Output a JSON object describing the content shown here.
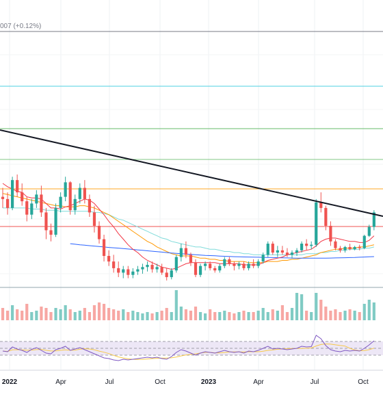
{
  "header": {
    "legend_fragment": "007 (+0.12%)"
  },
  "chart_data": {
    "type": "candlestick",
    "colors": {
      "up": "#26a69a",
      "down": "#ef5350",
      "volume_up": "#80cbc4",
      "volume_down": "#f7a7a3",
      "trendline": "#131722",
      "sma_fast": "#f23645",
      "sma_mid": "#ff9800",
      "sma_slow": "#7fdbda",
      "sma_long": "#2962ff",
      "rsi": "#7e57c2",
      "rsi_ma": "#f7c948",
      "rsi_band": "#ede7f6"
    },
    "price_levels": [
      {
        "name": "level-1",
        "color": "#787b86"
      },
      {
        "name": "level-2",
        "color": "#4dd0e1"
      },
      {
        "name": "level-3",
        "color": "#66bb6a"
      },
      {
        "name": "level-4",
        "color": "#81c784"
      },
      {
        "name": "level-5",
        "color": "#ffa726"
      },
      {
        "name": "level-6",
        "color": "#ef5350"
      },
      {
        "name": "level-7",
        "color": "#90a4ae"
      }
    ],
    "x_ticks": [
      {
        "label": "2022",
        "bold": true
      },
      {
        "label": "Apr",
        "bold": false
      },
      {
        "label": "Jul",
        "bold": false
      },
      {
        "label": "Oct",
        "bold": false
      },
      {
        "label": "2023",
        "bold": true
      },
      {
        "label": "Apr",
        "bold": false
      },
      {
        "label": "Jul",
        "bold": false
      },
      {
        "label": "Oct",
        "bold": false
      }
    ],
    "rsi_levels": [
      70,
      50,
      30
    ],
    "candles": [
      [
        80,
        88,
        70,
        78
      ],
      [
        78,
        84,
        64,
        70
      ],
      [
        70,
        98,
        68,
        95
      ],
      [
        95,
        100,
        80,
        84
      ],
      [
        84,
        92,
        72,
        76
      ],
      [
        76,
        80,
        58,
        64
      ],
      [
        64,
        78,
        60,
        74
      ],
      [
        74,
        86,
        70,
        82
      ],
      [
        82,
        90,
        62,
        66
      ],
      [
        66,
        70,
        42,
        50
      ],
      [
        50,
        56,
        40,
        46
      ],
      [
        46,
        74,
        44,
        70
      ],
      [
        70,
        84,
        66,
        80
      ],
      [
        80,
        98,
        76,
        93
      ],
      [
        93,
        94,
        64,
        68
      ],
      [
        68,
        82,
        64,
        78
      ],
      [
        78,
        92,
        74,
        88
      ],
      [
        88,
        95,
        74,
        78
      ],
      [
        78,
        82,
        62,
        66
      ],
      [
        66,
        72,
        48,
        54
      ],
      [
        54,
        58,
        38,
        42
      ],
      [
        42,
        46,
        22,
        27
      ],
      [
        27,
        32,
        18,
        22
      ],
      [
        22,
        28,
        12,
        16
      ],
      [
        16,
        22,
        8,
        12
      ],
      [
        12,
        18,
        7,
        15
      ],
      [
        15,
        18,
        7,
        10
      ],
      [
        10,
        16,
        7,
        13
      ],
      [
        13,
        18,
        10,
        15
      ],
      [
        15,
        20,
        11,
        17
      ],
      [
        17,
        22,
        13,
        19
      ],
      [
        19,
        22,
        12,
        15
      ],
      [
        15,
        20,
        12,
        17
      ],
      [
        17,
        20,
        10,
        12
      ],
      [
        12,
        16,
        5,
        8
      ],
      [
        8,
        16,
        6,
        14
      ],
      [
        14,
        28,
        12,
        26
      ],
      [
        26,
        38,
        22,
        34
      ],
      [
        34,
        40,
        25,
        28
      ],
      [
        28,
        30,
        18,
        21
      ],
      [
        21,
        24,
        8,
        10
      ],
      [
        10,
        20,
        8,
        18
      ],
      [
        18,
        22,
        14,
        20
      ],
      [
        20,
        22,
        14,
        16
      ],
      [
        16,
        18,
        12,
        14
      ],
      [
        14,
        20,
        12,
        18
      ],
      [
        18,
        26,
        16,
        24
      ],
      [
        24,
        26,
        18,
        20
      ],
      [
        20,
        22,
        14,
        18
      ],
      [
        18,
        22,
        15,
        20
      ],
      [
        20,
        22,
        14,
        16
      ],
      [
        16,
        22,
        14,
        20
      ],
      [
        20,
        24,
        16,
        18
      ],
      [
        18,
        24,
        16,
        22
      ],
      [
        22,
        30,
        20,
        28
      ],
      [
        28,
        40,
        26,
        38
      ],
      [
        38,
        40,
        28,
        30
      ],
      [
        30,
        36,
        26,
        32
      ],
      [
        32,
        36,
        28,
        30
      ],
      [
        30,
        34,
        26,
        28
      ],
      [
        28,
        32,
        25,
        30
      ],
      [
        30,
        34,
        27,
        32
      ],
      [
        32,
        40,
        30,
        38
      ],
      [
        38,
        42,
        32,
        36
      ],
      [
        36,
        40,
        33,
        37
      ],
      [
        37,
        78,
        35,
        75
      ],
      [
        75,
        84,
        66,
        70
      ],
      [
        70,
        72,
        50,
        54
      ],
      [
        54,
        58,
        36,
        40
      ],
      [
        40,
        42,
        32,
        34
      ],
      [
        34,
        36,
        30,
        32
      ],
      [
        32,
        36,
        30,
        35
      ],
      [
        35,
        38,
        32,
        33
      ],
      [
        33,
        36,
        32,
        35
      ],
      [
        35,
        37,
        32,
        34
      ],
      [
        34,
        46,
        33,
        45
      ],
      [
        45,
        55,
        44,
        53
      ],
      [
        53,
        68,
        50,
        66
      ]
    ],
    "volumes": [
      18,
      14,
      22,
      16,
      14,
      24,
      12,
      14,
      20,
      18,
      12,
      18,
      16,
      22,
      16,
      12,
      14,
      18,
      12,
      22,
      26,
      24,
      18,
      16,
      14,
      16,
      12,
      14,
      12,
      10,
      12,
      10,
      12,
      14,
      18,
      12,
      44,
      20,
      16,
      14,
      20,
      12,
      10,
      16,
      12,
      12,
      14,
      12,
      10,
      12,
      14,
      12,
      12,
      14,
      18,
      12,
      16,
      14,
      22,
      12,
      18,
      40,
      38,
      14,
      12,
      40,
      30,
      20,
      14,
      16,
      12,
      14,
      16,
      14,
      12,
      24,
      30,
      26
    ],
    "rsi": [
      42,
      40,
      54,
      48,
      44,
      38,
      47,
      52,
      44,
      36,
      34,
      46,
      50,
      56,
      44,
      48,
      52,
      46,
      40,
      34,
      28,
      22,
      20,
      16,
      14,
      18,
      16,
      18,
      20,
      22,
      24,
      22,
      24,
      20,
      18,
      26,
      38,
      46,
      42,
      36,
      30,
      36,
      40,
      38,
      36,
      40,
      44,
      40,
      38,
      40,
      36,
      42,
      40,
      44,
      50,
      56,
      48,
      50,
      48,
      46,
      48,
      50,
      56,
      54,
      55,
      88,
      78,
      58,
      46,
      42,
      40,
      44,
      42,
      44,
      42,
      50,
      60,
      72
    ],
    "sma_fast": [
      92,
      89,
      87,
      85,
      84,
      80,
      79,
      79,
      78,
      74,
      70,
      70,
      69,
      71,
      72,
      74,
      76,
      78,
      77,
      74,
      69,
      64,
      58,
      53,
      47,
      42,
      37,
      33,
      30,
      26,
      23,
      21,
      19,
      17,
      16,
      15,
      16,
      18,
      20,
      21,
      21,
      21,
      21,
      21,
      21,
      20,
      20,
      20,
      20,
      20,
      19,
      19,
      19,
      19,
      21,
      23,
      24,
      25,
      26,
      28,
      29,
      30,
      31,
      32,
      33,
      36,
      40,
      42,
      43,
      43,
      42,
      41,
      40,
      40,
      39,
      39,
      41,
      45
    ],
    "sma_mid": [
      83,
      82,
      81,
      80,
      79,
      78,
      77,
      76,
      75,
      74,
      73,
      72,
      72,
      71,
      71,
      71,
      72,
      72,
      71,
      70,
      68,
      66,
      64,
      61,
      58,
      55,
      52,
      49,
      46,
      43,
      40,
      38,
      35,
      33,
      31,
      29,
      28,
      27,
      27,
      27,
      26,
      25,
      25,
      24,
      24,
      23,
      23,
      22,
      22,
      22,
      22,
      21,
      21,
      21,
      21,
      22,
      22,
      22,
      23,
      23,
      24,
      24,
      25,
      26,
      27,
      28,
      30,
      31,
      32,
      33,
      33,
      34,
      34,
      34,
      35,
      35,
      36,
      37
    ],
    "sma_slow": [
      70,
      70,
      70,
      70,
      70,
      70,
      69,
      69,
      69,
      68,
      68,
      68,
      67,
      67,
      67,
      67,
      67,
      67,
      67,
      66,
      66,
      65,
      64,
      62,
      60,
      59,
      57,
      55,
      53,
      51,
      49,
      47,
      45,
      43,
      42,
      40,
      39,
      38,
      37,
      36,
      35,
      35,
      34,
      33,
      33,
      32,
      31,
      31,
      30,
      30,
      29,
      29,
      28,
      28,
      28,
      28,
      28,
      28,
      28,
      28,
      28,
      28,
      28,
      29,
      29,
      29,
      30,
      30,
      31,
      31,
      32,
      32,
      33,
      33,
      33,
      34,
      34,
      35
    ],
    "sma_long_start_index": 14,
    "sma_long": [
      38,
      37.5,
      37,
      36.6,
      36.2,
      35.8,
      35.4,
      35,
      34.6,
      34.3,
      34,
      33.6,
      33.2,
      32.8,
      32.4,
      32,
      31.6,
      31.2,
      30.8,
      30.4,
      30,
      29.6,
      29.3,
      29,
      28.7,
      28.4,
      28.1,
      27.8,
      27.5,
      27.3,
      27.1,
      26.9,
      26.7,
      26.5,
      26.3,
      26.2,
      26.1,
      26,
      25.9,
      25.8,
      25.7,
      25.6,
      25.5,
      25.4,
      25.3,
      25.2,
      25.1,
      25,
      25,
      25,
      25,
      25,
      25,
      25,
      25.1,
      25.2,
      25.3,
      25.4,
      25.5,
      25.6,
      25.8,
      26,
      26.2,
      26.4
    ]
  }
}
